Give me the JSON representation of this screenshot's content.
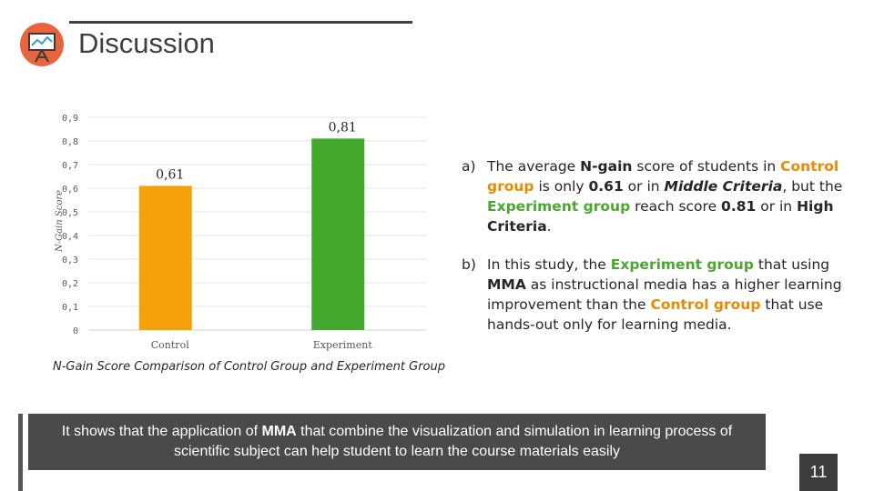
{
  "slide": {
    "title": "Discussion",
    "page_number": "11"
  },
  "chart_data": {
    "type": "bar",
    "categories": [
      "Control",
      "Experiment"
    ],
    "values": [
      0.61,
      0.81
    ],
    "data_labels": [
      "0,61",
      "0,81"
    ],
    "bar_colors": [
      "#f5a10a",
      "#43a82e"
    ],
    "ylabel": "N-Gain Score",
    "ylim": [
      0,
      0.9
    ],
    "yticks": [
      0,
      0.1,
      0.2,
      0.3,
      0.4,
      0.5,
      0.6,
      0.7,
      0.8,
      0.9
    ],
    "ytick_labels": [
      "0",
      "0,1",
      "0,2",
      "0,3",
      "0,4",
      "0,5",
      "0,6",
      "0,7",
      "0,8",
      "0,9"
    ],
    "grid": true,
    "caption": "N-Gain Score Comparison of Control Group and Experiment Group"
  },
  "bullets": {
    "a": {
      "marker": "a)",
      "t1": "The average ",
      "t2": "N-gain",
      "t3": " score of students in ",
      "t4": "Control group",
      "t5": " is only ",
      "t6": "0.61",
      "t7": " or in ",
      "t8": "Middle Criteria",
      "t9": ", but the ",
      "t10": "Experiment group",
      "t11": " reach score ",
      "t12": "0.81",
      "t13": " or in ",
      "t14": "High Criteria",
      "t15": "."
    },
    "b": {
      "marker": "b)",
      "t1": "In this study, the ",
      "t2": "Experiment group",
      "t3": " that using ",
      "t4": "MMA",
      "t5": " as instructional media has a higher learning improvement than the ",
      "t6": "Control group",
      "t7": " that use hands-out only for learning media."
    }
  },
  "conclusion": {
    "t1": "It shows that the application of ",
    "t2": "MMA",
    "t3": " that combine the visualization and simulation in learning process of scientific subject can help student to learn the course materials easily"
  },
  "colors": {
    "orange": "#e88a06",
    "green": "#49a82d",
    "logo_bg": "#e8643c"
  }
}
